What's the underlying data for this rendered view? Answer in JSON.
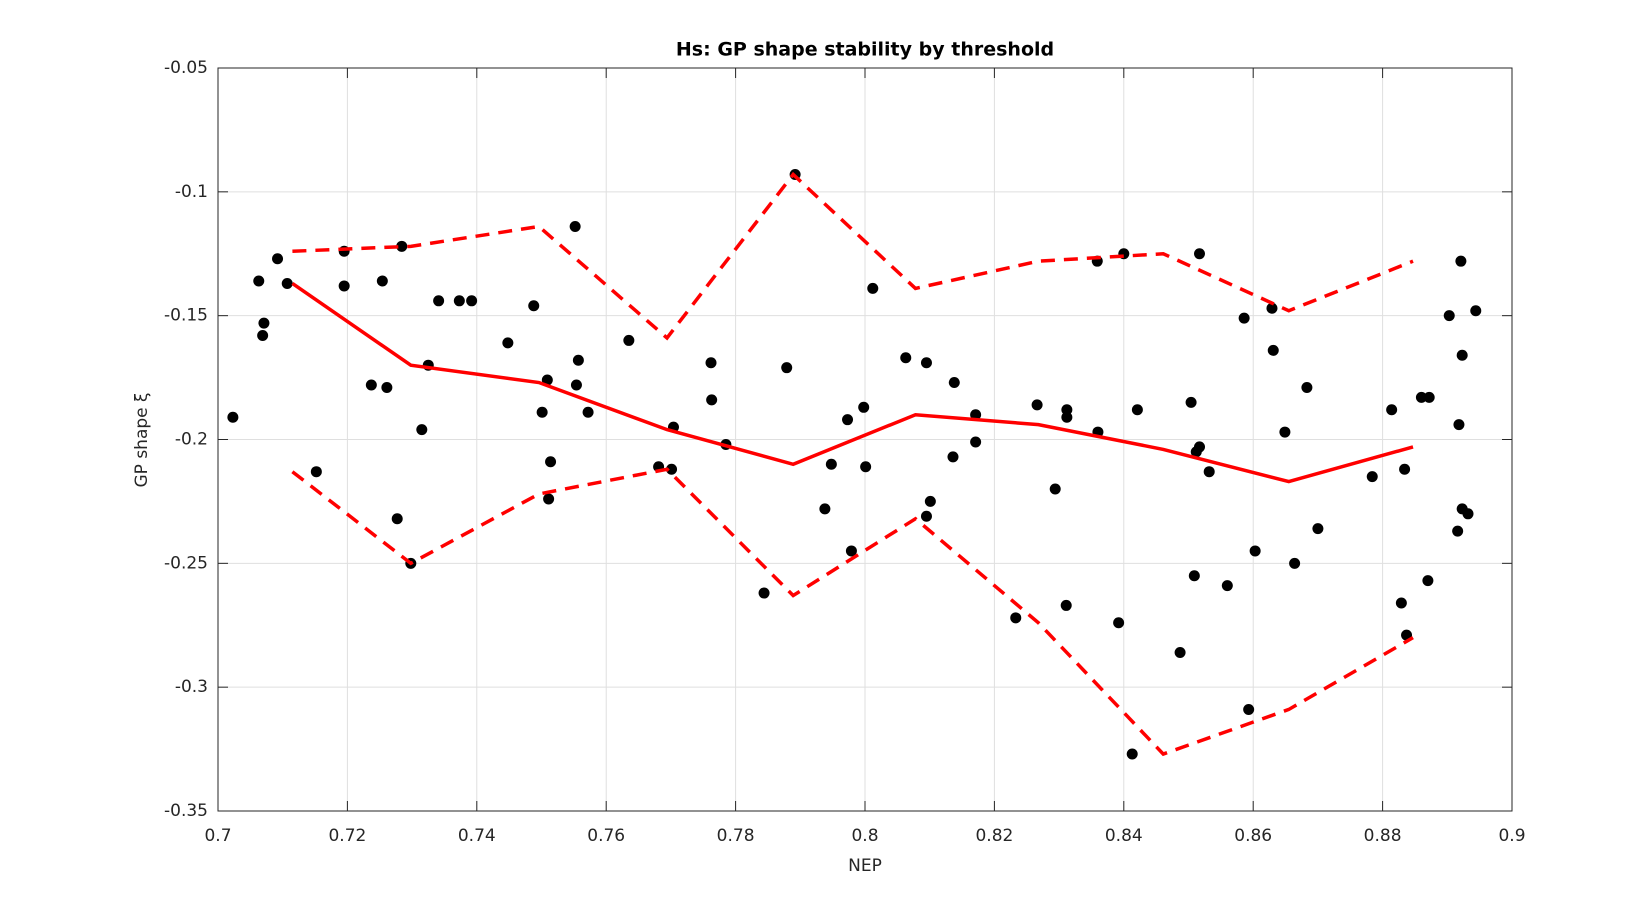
{
  "chart_data": {
    "type": "scatter",
    "title": "Hs: GP shape stability by threshold",
    "x_label": "NEP",
    "y_label": "GP shape ξ",
    "xlim": [
      0.7,
      0.9
    ],
    "xticks": [
      0.7,
      0.72,
      0.74,
      0.76,
      0.78,
      0.8,
      0.82,
      0.84,
      0.86,
      0.88,
      0.9
    ],
    "ylim": [
      -0.35,
      -0.05
    ],
    "yticks": [
      -0.35,
      -0.3,
      -0.25,
      -0.2,
      -0.15,
      -0.1,
      -0.05
    ],
    "grid": true,
    "series": [
      {
        "type": "scatter",
        "color": "#000000",
        "x": [
          0.7023,
          0.7063,
          0.7069,
          0.7071,
          0.7092,
          0.7107,
          0.7152,
          0.7195,
          0.7195,
          0.7237,
          0.7254,
          0.7261,
          0.7284,
          0.7277,
          0.7298,
          0.7315,
          0.7325,
          0.7341,
          0.7373,
          0.7392,
          0.7448,
          0.7488,
          0.7501,
          0.7509,
          0.7514,
          0.7511,
          0.7552,
          0.7557,
          0.7554,
          0.7572,
          0.7635,
          0.7681,
          0.7701,
          0.7704,
          0.7762,
          0.7763,
          0.7785,
          0.7844,
          0.7879,
          0.7892,
          0.7938,
          0.7948,
          0.7973,
          0.7979,
          0.7998,
          0.8001,
          0.8012,
          0.8063,
          0.8095,
          0.8095,
          0.8101,
          0.8138,
          0.8136,
          0.8171,
          0.8171,
          0.8233,
          0.8266,
          0.8294,
          0.8312,
          0.8312,
          0.8311,
          0.836,
          0.8359,
          0.8392,
          0.84,
          0.8413,
          0.8421,
          0.8487,
          0.8504,
          0.8509,
          0.8512,
          0.8517,
          0.8517,
          0.8532,
          0.856,
          0.8586,
          0.8593,
          0.8603,
          0.8629,
          0.8631,
          0.8649,
          0.8664,
          0.8683,
          0.87,
          0.8784,
          0.8814,
          0.8829,
          0.8834,
          0.8837,
          0.886,
          0.8872,
          0.887,
          0.8903,
          0.8916,
          0.8918,
          0.8921,
          0.8923,
          0.8923,
          0.8932,
          0.8944
        ],
        "values": [
          -0.191,
          -0.136,
          -0.158,
          -0.153,
          -0.127,
          -0.137,
          -0.213,
          -0.124,
          -0.138,
          -0.178,
          -0.136,
          -0.179,
          -0.122,
          -0.232,
          -0.25,
          -0.196,
          -0.17,
          -0.144,
          -0.144,
          -0.144,
          -0.161,
          -0.146,
          -0.189,
          -0.176,
          -0.209,
          -0.224,
          -0.114,
          -0.168,
          -0.178,
          -0.189,
          -0.16,
          -0.211,
          -0.212,
          -0.195,
          -0.169,
          -0.184,
          -0.202,
          -0.262,
          -0.171,
          -0.093,
          -0.228,
          -0.21,
          -0.192,
          -0.245,
          -0.187,
          -0.211,
          -0.139,
          -0.167,
          -0.169,
          -0.231,
          -0.225,
          -0.177,
          -0.207,
          -0.19,
          -0.201,
          -0.272,
          -0.186,
          -0.22,
          -0.188,
          -0.191,
          -0.267,
          -0.197,
          -0.128,
          -0.274,
          -0.125,
          -0.327,
          -0.188,
          -0.286,
          -0.185,
          -0.255,
          -0.205,
          -0.203,
          -0.125,
          -0.213,
          -0.259,
          -0.151,
          -0.309,
          -0.245,
          -0.147,
          -0.164,
          -0.197,
          -0.25,
          -0.179,
          -0.236,
          -0.215,
          -0.188,
          -0.266,
          -0.212,
          -0.279,
          -0.183,
          -0.183,
          -0.257,
          -0.15,
          -0.237,
          -0.194,
          -0.128,
          -0.166,
          -0.228,
          -0.23,
          -0.148
        ]
      },
      {
        "type": "line",
        "color": "#ff0000",
        "dashed": false,
        "x": [
          0.7115,
          0.7298,
          0.7496,
          0.7694,
          0.7889,
          0.8078,
          0.8268,
          0.8461,
          0.8655,
          0.8847
        ],
        "values": [
          -0.137,
          -0.17,
          -0.177,
          -0.196,
          -0.21,
          -0.19,
          -0.194,
          -0.204,
          -0.217,
          -0.203
        ]
      },
      {
        "type": "line",
        "color": "#ff0000",
        "dashed": true,
        "x": [
          0.7115,
          0.7298,
          0.7496,
          0.7694,
          0.7889,
          0.8078,
          0.8268,
          0.8461,
          0.8655,
          0.8847
        ],
        "values": [
          -0.124,
          -0.122,
          -0.114,
          -0.159,
          -0.093,
          -0.139,
          -0.128,
          -0.125,
          -0.148,
          -0.128
        ]
      },
      {
        "type": "line",
        "color": "#ff0000",
        "dashed": true,
        "x": [
          0.7115,
          0.7298,
          0.7496,
          0.7694,
          0.7889,
          0.8078,
          0.8268,
          0.8461,
          0.8655,
          0.8847
        ],
        "values": [
          -0.213,
          -0.25,
          -0.222,
          -0.212,
          -0.263,
          -0.232,
          -0.274,
          -0.327,
          -0.309,
          -0.28
        ]
      }
    ]
  }
}
